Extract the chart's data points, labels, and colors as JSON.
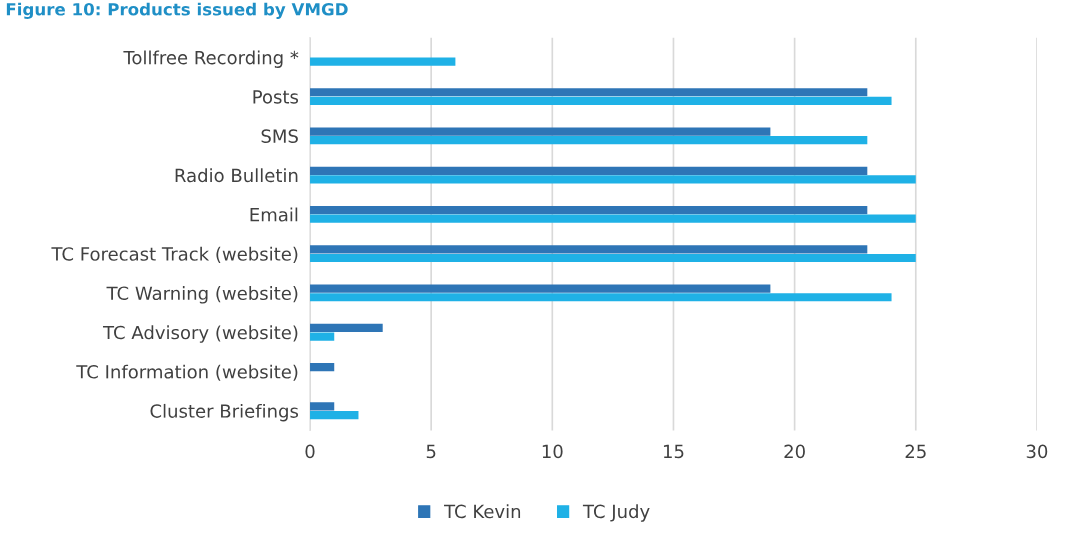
{
  "chart_data": {
    "type": "bar",
    "orientation": "horizontal",
    "title": "Figure 10: Products issued by VMGD",
    "categories": [
      "Tollfree Recording *",
      "Posts",
      "SMS",
      "Radio Bulletin",
      "Email",
      "TC Forecast Track (website)",
      "TC Warning (website)",
      "TC Advisory (website)",
      "TC Information (website)",
      "Cluster Briefings"
    ],
    "series": [
      {
        "name": "TC Kevin",
        "color": "#2e75b6",
        "values": [
          null,
          23,
          19,
          23,
          23,
          23,
          19,
          3,
          1,
          1
        ]
      },
      {
        "name": "TC Judy",
        "color": "#1fb1e6",
        "values": [
          6,
          24,
          23,
          25,
          25,
          25,
          24,
          1,
          null,
          2
        ]
      }
    ],
    "xlim": [
      0,
      30
    ],
    "xticks": [
      0,
      5,
      10,
      15,
      20,
      25,
      30
    ],
    "grid": "x",
    "legend": "bottom"
  }
}
